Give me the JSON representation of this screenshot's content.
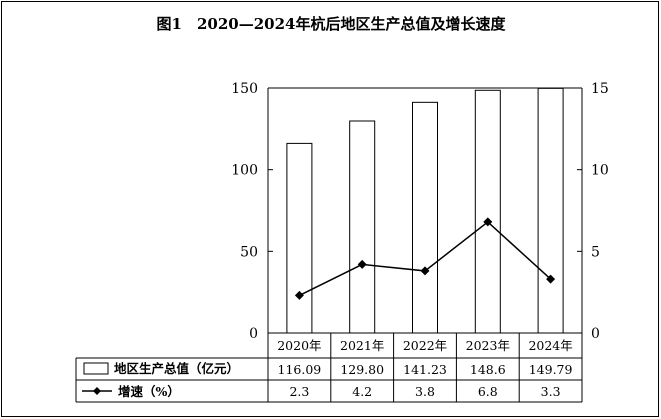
{
  "chart_data": {
    "type": "bar",
    "title": "图1　2020—2024年杭后地区生产总值及增长速度",
    "categories": [
      "2020年",
      "2021年",
      "2022年",
      "2023年",
      "2024年"
    ],
    "left_axis": {
      "min": 0,
      "max": 150,
      "ticks": [
        "0",
        "50",
        "100",
        "150"
      ]
    },
    "right_axis": {
      "min": 0,
      "max": 15,
      "ticks": [
        "0",
        "5",
        "10",
        "15"
      ]
    },
    "series": [
      {
        "name": "地区生产总值（亿元）",
        "type": "bar",
        "axis": "left",
        "values": [
          116.09,
          129.8,
          141.23,
          148.6,
          149.79
        ],
        "labels": [
          "116.09",
          "129.80",
          "141.23",
          "148.6",
          "149.79"
        ]
      },
      {
        "name": "增速（%）",
        "type": "line",
        "axis": "right",
        "values": [
          2.3,
          4.2,
          3.8,
          6.8,
          3.3
        ],
        "labels": [
          "2.3",
          "4.2",
          "3.8",
          "6.8",
          "3.3"
        ]
      }
    ],
    "legend_placement": "bottom-table",
    "grid": false,
    "colors": {
      "bar_fill": "#ffffff",
      "bar_stroke": "#000000",
      "line": "#000000"
    }
  }
}
